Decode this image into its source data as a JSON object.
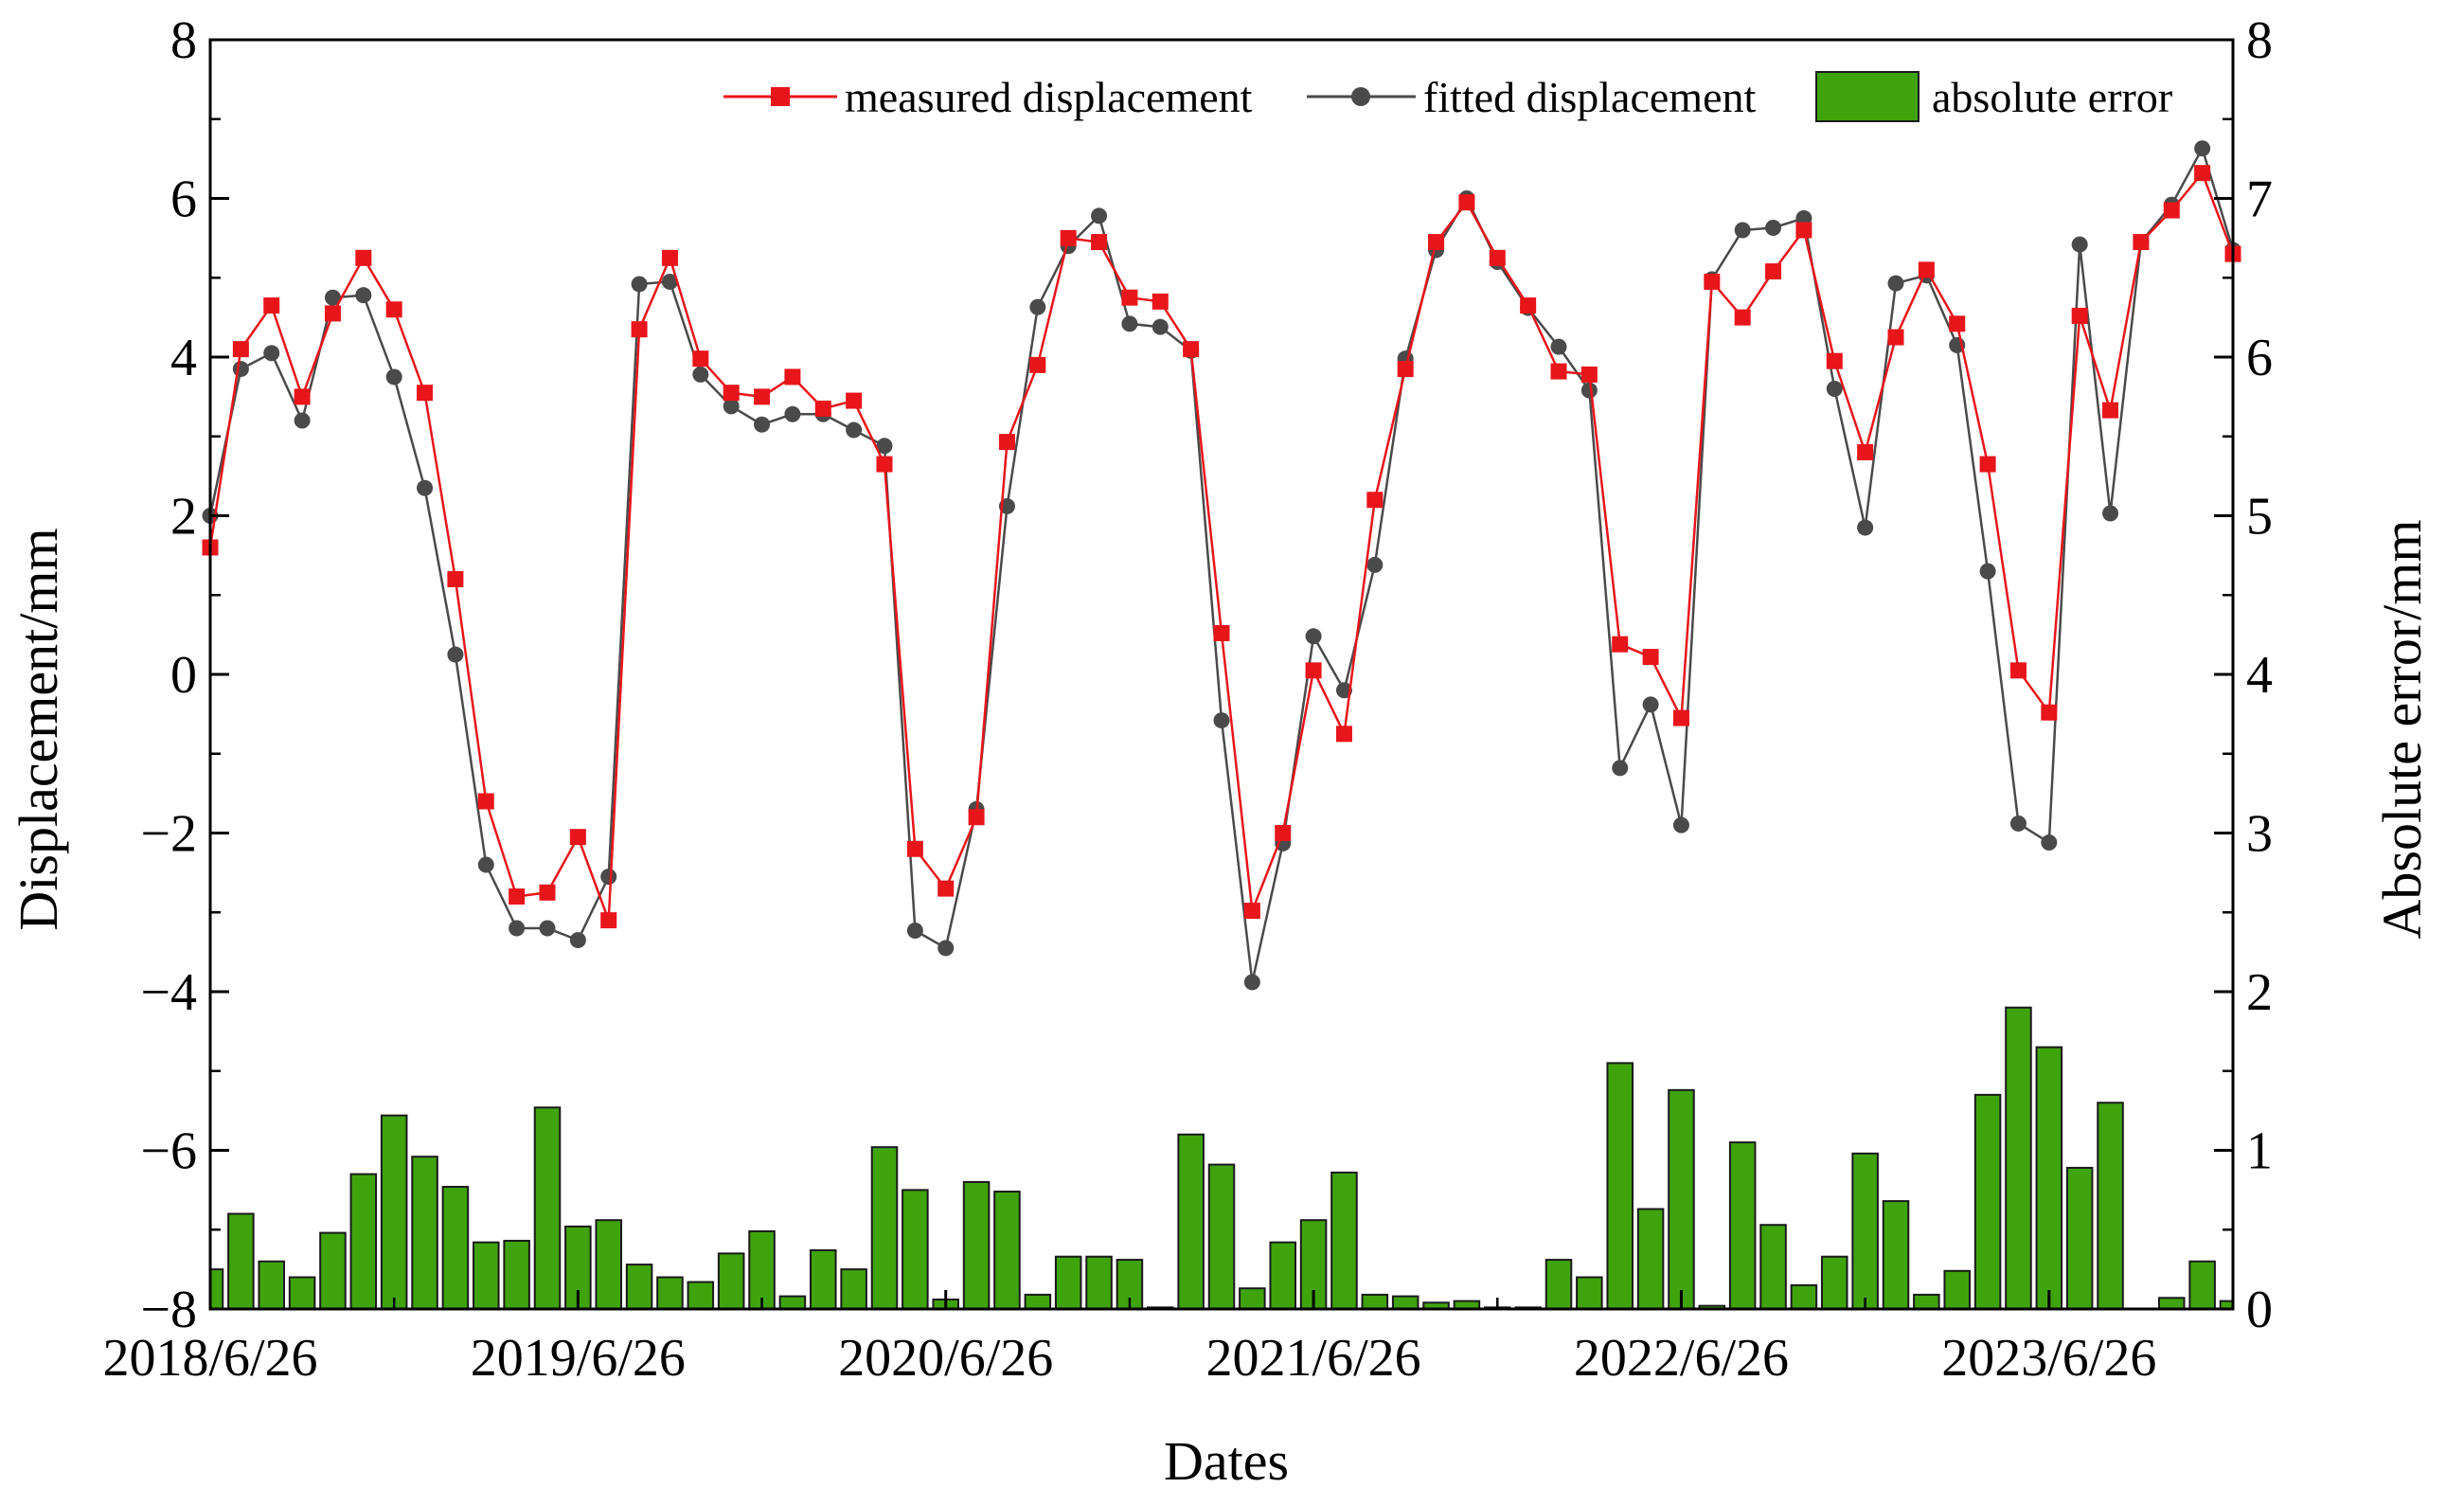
{
  "chart_data": {
    "type": "bar+line",
    "xlabel": "Dates",
    "ylabel_left": "Displacement/mm",
    "ylabel_right": "Absolute error/mm",
    "ylim_left": [
      -8,
      8
    ],
    "ylim_right": [
      0,
      8
    ],
    "yticks_left": [
      "−8",
      "−6",
      "−4",
      "−2",
      "0",
      "2",
      "4",
      "6",
      "8"
    ],
    "yticks_right": [
      "0",
      "1",
      "2",
      "3",
      "4",
      "5",
      "6",
      "7",
      "8"
    ],
    "xtick_labels": [
      "2018/6/26",
      "2019/6/26",
      "2020/6/26",
      "2021/6/26",
      "2022/6/26",
      "2023/6/26"
    ],
    "xtick_positions": [
      0,
      12,
      24,
      36,
      48,
      60
    ],
    "n_points": 67,
    "legend": {
      "position": "top-right",
      "measured": "measured displacement",
      "fitted": "fitted displacement",
      "error": "absolute error"
    },
    "colors": {
      "measured": "#e8151b",
      "fitted": "#4a4a4a",
      "error_fill": "#3fa30c",
      "error_stroke": "#1a1a1a"
    },
    "series": [
      {
        "name": "measured displacement",
        "values": [
          1.6,
          4.1,
          4.65,
          3.5,
          4.55,
          5.25,
          4.6,
          3.55,
          1.2,
          -1.6,
          -2.8,
          -2.75,
          -2.05,
          -3.1,
          4.35,
          5.25,
          3.98,
          3.55,
          3.5,
          3.75,
          3.35,
          3.45,
          2.65,
          -2.2,
          -2.7,
          -1.8,
          2.93,
          3.9,
          5.5,
          5.45,
          4.75,
          4.7,
          4.1,
          0.52,
          -2.98,
          -2.0,
          0.05,
          -0.75,
          2.2,
          3.85,
          5.45,
          5.95,
          5.25,
          4.65,
          3.82,
          3.78,
          0.38,
          0.22,
          -0.55,
          4.95,
          4.5,
          5.08,
          5.6,
          3.95,
          2.8,
          4.25,
          5.1,
          4.42,
          2.65,
          0.05,
          -0.48,
          4.52,
          3.33,
          5.45,
          5.85,
          6.32,
          5.3
        ]
      },
      {
        "name": "fitted displacement",
        "values": [
          2.0,
          3.85,
          4.05,
          3.2,
          4.75,
          4.78,
          3.75,
          2.35,
          0.25,
          -2.4,
          -3.2,
          -3.2,
          -3.35,
          -2.55,
          4.92,
          4.95,
          3.78,
          3.38,
          3.15,
          3.28,
          3.28,
          3.08,
          2.88,
          -3.23,
          -3.45,
          -1.7,
          2.12,
          4.63,
          5.4,
          5.78,
          4.42,
          4.38,
          4.08,
          -0.58,
          -3.88,
          -2.13,
          0.48,
          -0.2,
          1.38,
          3.98,
          5.35,
          6.0,
          5.2,
          4.62,
          4.13,
          3.58,
          -1.18,
          -0.38,
          -1.9,
          4.98,
          5.6,
          5.63,
          5.75,
          3.6,
          1.85,
          4.93,
          5.03,
          4.15,
          1.3,
          -1.88,
          -2.12,
          5.42,
          2.03,
          5.45,
          5.92,
          6.63,
          5.35
        ]
      },
      {
        "name": "absolute error",
        "axis": "right",
        "values": [
          0.25,
          0.6,
          0.3,
          0.2,
          0.48,
          0.85,
          1.22,
          0.96,
          0.77,
          0.42,
          0.43,
          1.27,
          0.52,
          0.56,
          0.28,
          0.2,
          0.17,
          0.35,
          0.49,
          0.08,
          0.37,
          0.25,
          1.02,
          0.75,
          0.06,
          0.8,
          0.74,
          0.09,
          0.33,
          0.33,
          0.31,
          0.01,
          1.1,
          0.91,
          0.13,
          0.42,
          0.56,
          0.86,
          0.09,
          0.08,
          0.04,
          0.05,
          0.01,
          0.01,
          0.31,
          0.2,
          1.55,
          0.63,
          1.38,
          0.02,
          1.05,
          0.53,
          0.15,
          0.33,
          0.98,
          0.68,
          0.09,
          0.24,
          1.35,
          1.9,
          1.65,
          0.89,
          1.3,
          0.0,
          0.07,
          0.3,
          0.05
        ]
      }
    ]
  }
}
